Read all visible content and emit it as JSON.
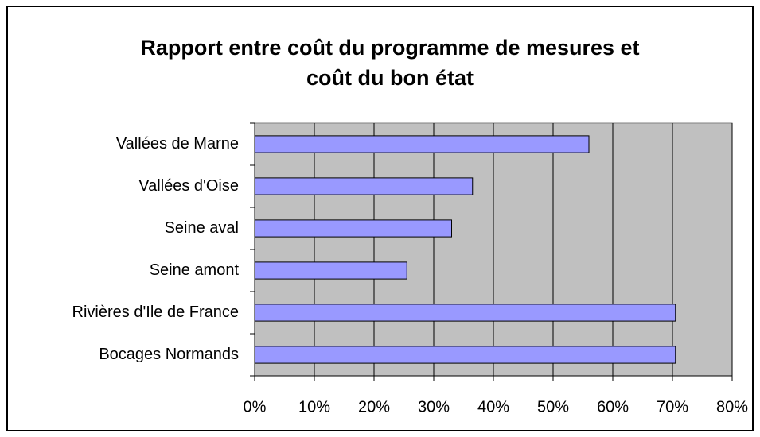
{
  "chart_data": {
    "type": "barh",
    "title": [
      "Rapport entre coût du programme de mesures et",
      "coût du bon état"
    ],
    "categories": [
      "Vallées de Marne",
      "Vallées d'Oise",
      "Seine aval",
      "Seine amont",
      "Rivières d'Ile de France",
      "Bocages Normands"
    ],
    "values": [
      56,
      36.5,
      33,
      25.5,
      70.5,
      70.5
    ],
    "color": "#9999ff",
    "xlim": [
      0,
      80
    ],
    "xticks": [
      {
        "value": 0,
        "label": "0%"
      },
      {
        "value": 10,
        "label": "10%"
      },
      {
        "value": 20,
        "label": "20%"
      },
      {
        "value": 30,
        "label": "30%"
      },
      {
        "value": 40,
        "label": "40%"
      },
      {
        "value": 50,
        "label": "50%"
      },
      {
        "value": 60,
        "label": "60%"
      },
      {
        "value": 70,
        "label": "70%"
      },
      {
        "value": 80,
        "label": "80%"
      }
    ],
    "grid": true
  }
}
